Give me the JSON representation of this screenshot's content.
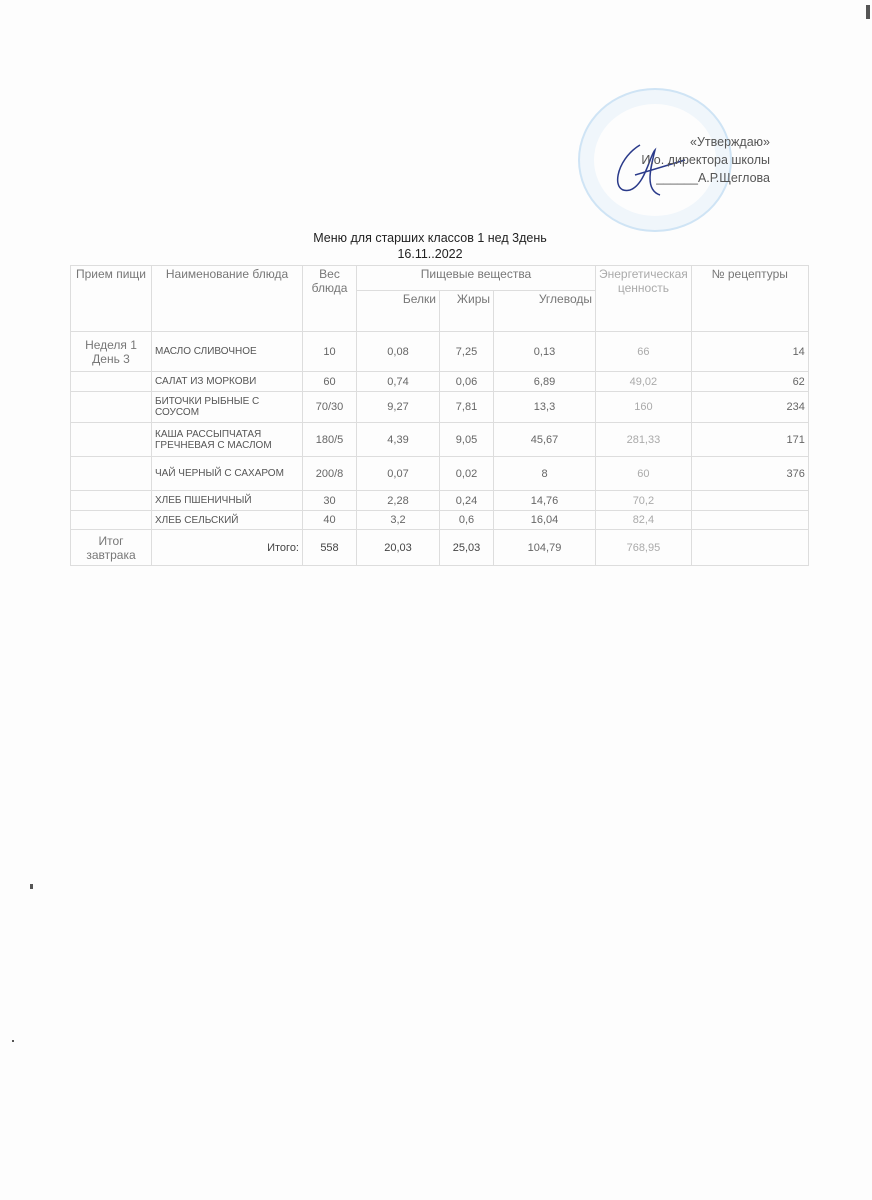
{
  "approval": {
    "line1": "«Утверждаю»",
    "line2": "И.о. директора  школы",
    "line3": "______А.Р.Щеглова"
  },
  "title": {
    "line1": "Меню для старших  классов  1 нед 3день",
    "line2": "16.11..2022"
  },
  "headers": {
    "meal": "Прием пищи",
    "dish": "Наименование блюда",
    "weight": "Вес блюда",
    "nutrients": "Пищевые вещества",
    "protein": "Белки",
    "fat": "Жиры",
    "carbs": "Углеводы",
    "energy": "Энергетическая ценность",
    "recipe": "№ рецептуры"
  },
  "meal_label": "Неделя 1 День 3",
  "rows": [
    {
      "dish": "МАСЛО СЛИВОЧНОЕ",
      "weight": "10",
      "protein": "0,08",
      "fat": "7,25",
      "carbs": "0,13",
      "energy": "66",
      "recipe": "14"
    },
    {
      "dish": "САЛАТ ИЗ МОРКОВИ",
      "weight": "60",
      "protein": "0,74",
      "fat": "0,06",
      "carbs": "6,89",
      "energy": "49,02",
      "recipe": "62"
    },
    {
      "dish": "БИТОЧКИ РЫБНЫЕ С СОУСОМ",
      "weight": "70/30",
      "protein": "9,27",
      "fat": "7,81",
      "carbs": "13,3",
      "energy": "160",
      "recipe": "234"
    },
    {
      "dish": "КАША РАССЫПЧАТАЯ ГРЕЧНЕВАЯ С МАСЛОМ",
      "weight": "180/5",
      "protein": "4,39",
      "fat": "9,05",
      "carbs": "45,67",
      "energy": "281,33",
      "recipe": "171"
    },
    {
      "dish": "ЧАЙ ЧЕРНЫЙ С САХАРОМ",
      "weight": "200/8",
      "protein": "0,07",
      "fat": "0,02",
      "carbs": "8",
      "energy": "60",
      "recipe": "376"
    },
    {
      "dish": "ХЛЕБ ПШЕНИЧНЫЙ",
      "weight": "30",
      "protein": "2,28",
      "fat": "0,24",
      "carbs": "14,76",
      "energy": "70,2",
      "recipe": ""
    },
    {
      "dish": "ХЛЕБ СЕЛЬСКИЙ",
      "weight": "40",
      "protein": "3,2",
      "fat": "0,6",
      "carbs": "16,04",
      "energy": "82,4",
      "recipe": ""
    }
  ],
  "total": {
    "meal": "Итог завтрака",
    "label": "Итого:",
    "weight": "558",
    "protein": "20,03",
    "fat": "25,03",
    "carbs": "104,79",
    "energy": "768,95"
  },
  "colors": {
    "stamp": "#8cc4ee",
    "signature": "#2a3a8a"
  }
}
